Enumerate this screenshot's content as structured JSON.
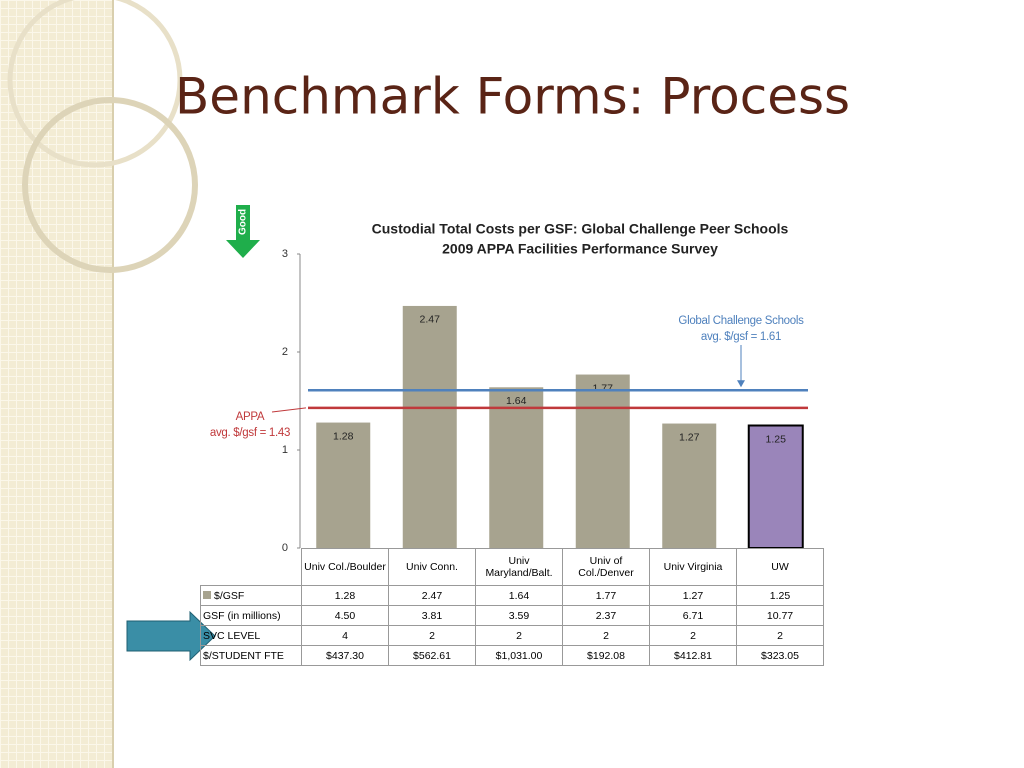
{
  "slide_title": "Benchmark Forms:  Process",
  "good_label": "Good",
  "chart_data": {
    "type": "bar",
    "title": "Custodial Total Costs per GSF:  Global Challenge Peer Schools",
    "subtitle": "2009 APPA Facilities Performance Survey",
    "categories": [
      "Univ Col./Boulder",
      "Univ Conn.",
      "Univ Maryland/Balt.",
      "Univ of Col./Denver",
      "Univ Virginia",
      "UW"
    ],
    "series": [
      {
        "name": "$/GSF",
        "color": "#a7a38f",
        "values": [
          1.28,
          2.47,
          1.64,
          1.77,
          1.27,
          1.25
        ]
      }
    ],
    "bar_colors": [
      "#a7a38f",
      "#a7a38f",
      "#a7a38f",
      "#a7a38f",
      "#a7a38f",
      "#9a85ba"
    ],
    "ylim": [
      0,
      3
    ],
    "yticks": [
      0,
      1,
      2,
      3
    ],
    "reference_lines": [
      {
        "label_lines": [
          "APPA",
          "avg. $/gsf = 1.43"
        ],
        "value": 1.43,
        "color": "#c0393b"
      },
      {
        "label_lines": [
          "Global Challenge Schools",
          "avg. $/gsf = 1.61"
        ],
        "value": 1.61,
        "color": "#4f81bd"
      }
    ],
    "table_rows": [
      {
        "label": "GSF (in millions)",
        "cells": [
          "4.50",
          "3.81",
          "3.59",
          "2.37",
          "6.71",
          "10.77"
        ]
      },
      {
        "label": "SVC LEVEL",
        "cells": [
          "4",
          "2",
          "2",
          "2",
          "2",
          "2"
        ]
      },
      {
        "label": "$/STUDENT  FTE",
        "cells": [
          "$437.30",
          "$562.61",
          "$1,031.00",
          "$192.08",
          "$412.81",
          "$323.05"
        ]
      }
    ]
  }
}
